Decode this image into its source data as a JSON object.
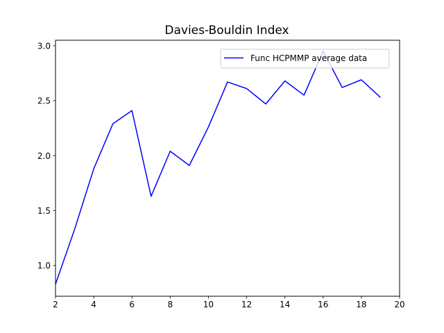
{
  "chart_data": {
    "type": "line",
    "title": "Davies-Bouldin Index",
    "xlabel": "",
    "ylabel": "",
    "xlim": [
      2,
      20
    ],
    "ylim": [
      0.72,
      3.05
    ],
    "xticks": [
      2,
      4,
      6,
      8,
      10,
      12,
      14,
      16,
      18,
      20
    ],
    "yticks": [
      1.0,
      1.5,
      2.0,
      2.5,
      3.0
    ],
    "ytick_labels": [
      "1.0",
      "1.5",
      "2.0",
      "2.5",
      "3.0"
    ],
    "grid": false,
    "legend_position": "upper right",
    "series": [
      {
        "name": "Func HCPMMP average data",
        "color": "#0000ff",
        "x": [
          2,
          3,
          4,
          5,
          6,
          7,
          8,
          9,
          10,
          11,
          12,
          13,
          14,
          15,
          16,
          17,
          18,
          19
        ],
        "y": [
          0.83,
          1.33,
          1.88,
          2.29,
          2.41,
          1.63,
          2.04,
          1.91,
          2.26,
          2.67,
          2.61,
          2.47,
          2.68,
          2.55,
          2.95,
          2.62,
          2.69,
          2.53
        ]
      }
    ]
  }
}
